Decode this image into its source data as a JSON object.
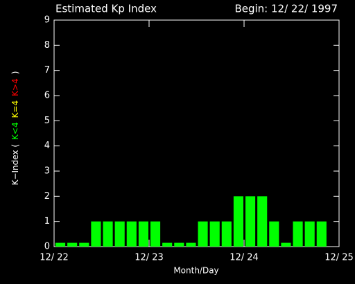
{
  "chart_data": {
    "type": "bar",
    "title": "Estimated Kp Index",
    "subtitle": "Begin: 12/ 22/ 1997",
    "x_label": "Month/Day",
    "y_label_parts": [
      {
        "text": "K−Index (",
        "color": "#ffffff"
      },
      {
        "text": "K<4",
        "color": "#00ff00"
      },
      {
        "text": "K=4",
        "color": "#ffff00"
      },
      {
        "text": "K>4",
        "color": "#ff0000"
      },
      {
        "text": ")",
        "color": "#ffffff"
      }
    ],
    "x": [
      0,
      0.125,
      0.25,
      0.375,
      0.5,
      0.625,
      0.75,
      0.875,
      1,
      1.125,
      1.25,
      1.375,
      1.5,
      1.625,
      1.75,
      1.875,
      2,
      2.125,
      2.25,
      2.375,
      2.5,
      2.625,
      2.75,
      2.875
    ],
    "values": [
      0.15,
      0.15,
      0.15,
      1,
      1,
      1,
      1,
      1,
      1,
      0.15,
      0.15,
      0.15,
      1,
      1,
      1,
      2,
      2,
      2,
      1,
      0.15,
      1,
      1,
      1,
      null
    ],
    "color": "#00ff00",
    "xlim": [
      0,
      3
    ],
    "xticks": [
      {
        "value": 0,
        "label": "12/ 22"
      },
      {
        "value": 1,
        "label": "12/ 23"
      },
      {
        "value": 2,
        "label": "12/ 24"
      },
      {
        "value": 3,
        "label": "12/ 25"
      }
    ],
    "ylim": [
      0,
      9
    ],
    "yticks": [
      0,
      1,
      2,
      3,
      4,
      5,
      6,
      7,
      8,
      9
    ]
  }
}
